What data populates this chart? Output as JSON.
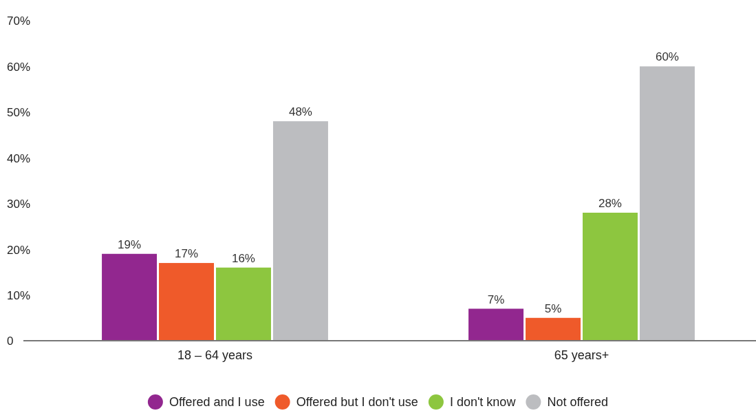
{
  "chart_data": {
    "type": "bar",
    "categories": [
      "18 – 64 years",
      "65 years+"
    ],
    "series": [
      {
        "name": "Offered and I use",
        "color": "#92278f",
        "values": [
          19,
          7
        ],
        "value_labels": [
          "19%",
          "7%"
        ]
      },
      {
        "name": "Offered but I don't use",
        "color": "#ef5a2a",
        "values": [
          17,
          5
        ],
        "value_labels": [
          "17%",
          "5%"
        ]
      },
      {
        "name": "I don't know",
        "color": "#8dc63f",
        "values": [
          16,
          28
        ],
        "value_labels": [
          "16%",
          "28%"
        ]
      },
      {
        "name": "Not offered",
        "color": "#bcbdc0",
        "values": [
          48,
          60
        ],
        "value_labels": [
          "48%",
          "60%"
        ]
      }
    ],
    "ylim": [
      0,
      70
    ],
    "yticks": [
      0,
      {
        "value": 10,
        "label": "10%"
      },
      {
        "value": 20,
        "label": "20%"
      },
      {
        "value": 30,
        "label": "30%"
      },
      {
        "value": 40,
        "label": "40%"
      },
      {
        "value": 50,
        "label": "50%"
      },
      {
        "value": 60,
        "label": "60%"
      },
      {
        "value": 70,
        "label": "70%"
      }
    ],
    "grid": false,
    "legend": "bottom"
  }
}
